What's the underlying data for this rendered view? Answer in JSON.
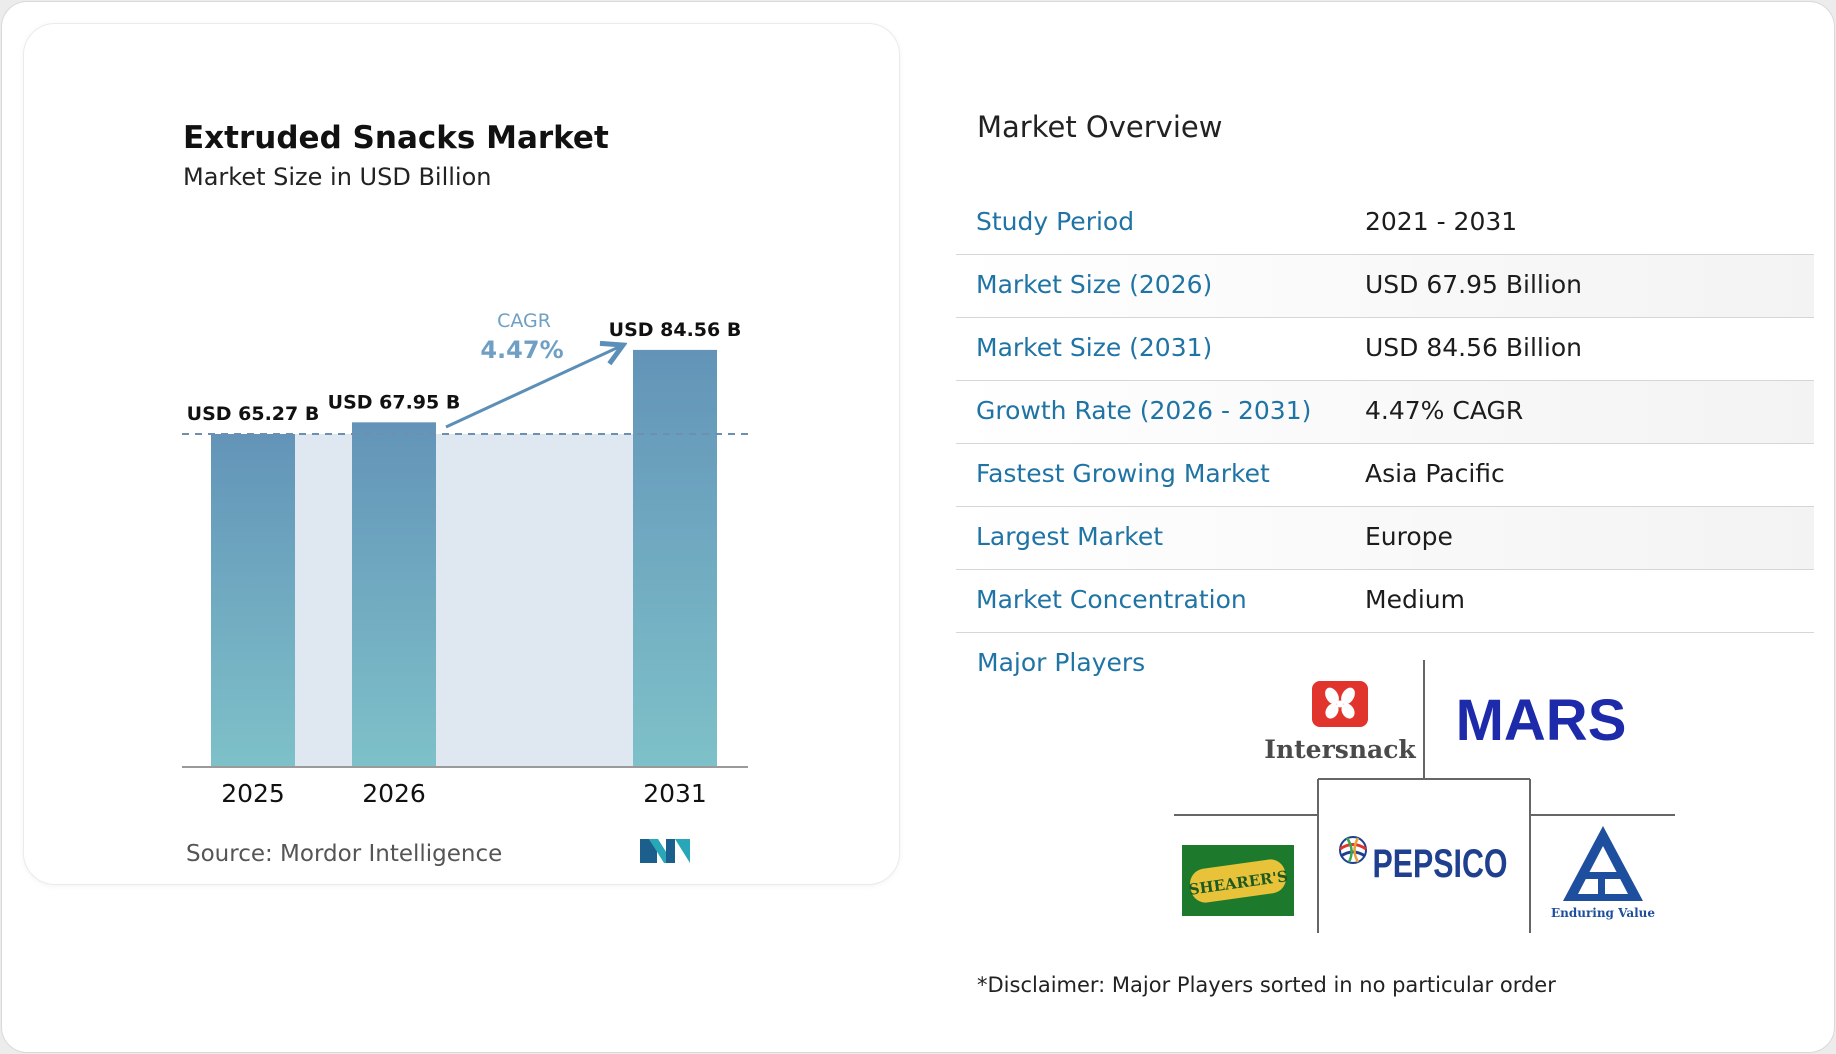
{
  "chart_data": {
    "type": "bar",
    "title": "Extruded Snacks Market",
    "subtitle": "Market Size in USD Billion",
    "categories": [
      "2025",
      "2026",
      "2031"
    ],
    "values": [
      65.27,
      67.95,
      84.56
    ],
    "value_labels": [
      "USD 65.27 B",
      "USD 67.95 B",
      "USD 84.56 B"
    ],
    "cagr_label": "CAGR",
    "cagr_value": "4.47%",
    "source": "Source: Mordor Intelligence",
    "colors": {
      "bar_top": "#6394b8",
      "bar_bottom": "#7ec1c9",
      "band": "#dfe8f1",
      "arrow": "#5b8fb8",
      "cagr_text": "#6fa0c4"
    }
  },
  "overview": {
    "title": "Market Overview",
    "rows": [
      {
        "label": "Study Period",
        "value": "2021 - 2031"
      },
      {
        "label": "Market Size (2026)",
        "value": "USD 67.95 Billion"
      },
      {
        "label": "Market Size (2031)",
        "value": "USD 84.56 Billion"
      },
      {
        "label": "Growth Rate (2026 - 2031)",
        "value": "4.47% CAGR"
      },
      {
        "label": "Fastest Growing Market",
        "value": "Asia Pacific"
      },
      {
        "label": "Largest Market",
        "value": "Europe"
      },
      {
        "label": "Market Concentration",
        "value": "Medium"
      }
    ]
  },
  "players": {
    "label": "Major Players",
    "logos": {
      "intersnack": "Intersnack",
      "mars": "MARS",
      "shearers": "SHEARER'S",
      "pepsico": "PEPSICO",
      "itc_tagline": "Enduring Value"
    }
  },
  "disclaimer": "*Disclaimer: Major Players sorted in no particular order",
  "colors": {
    "label_blue": "#1f74a5",
    "mars_blue": "#1d2bab",
    "intersnack_red": "#e0342c",
    "pepsico_blue": "#1f3f8f",
    "shearers_green": "#1d7a2d",
    "itc_blue": "#1e4e9e"
  }
}
